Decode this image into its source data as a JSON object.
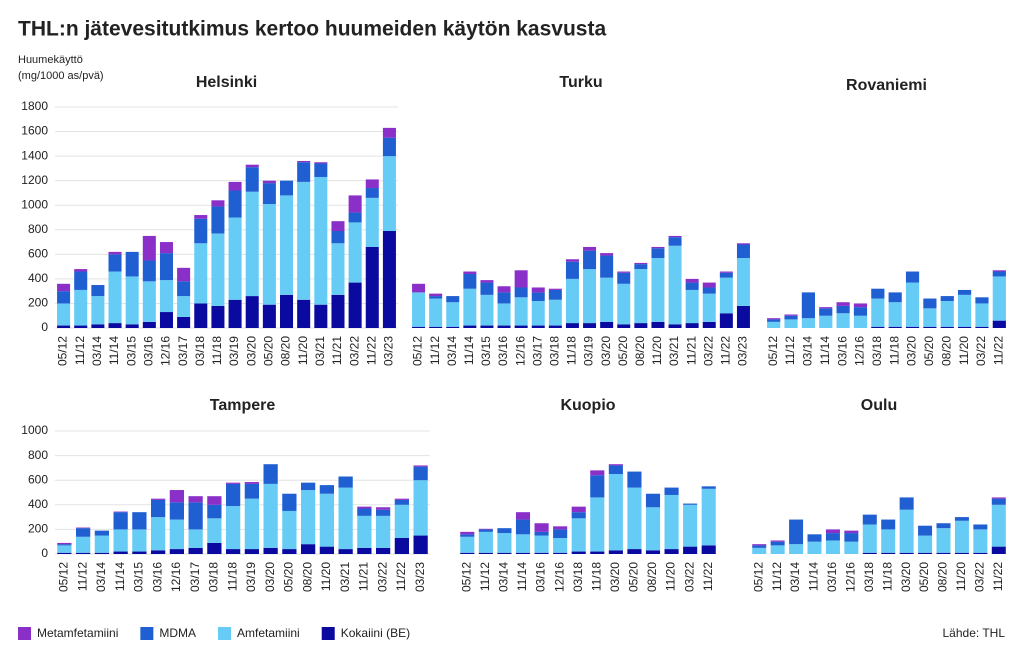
{
  "title": "THL:n jätevesitutkimus kertoo huumeiden käytön kasvusta",
  "ylabel": [
    "Huumekäyttö",
    "(mg/1000 as/pvä)"
  ],
  "source": "Lähde: THL",
  "chart_data": [
    {
      "type": "bar",
      "stacked": true,
      "title": "Helsinki",
      "categories": [
        "05/12",
        "11/12",
        "03/14",
        "11/14",
        "03/15",
        "03/16",
        "12/16",
        "03/17",
        "03/18",
        "11/18",
        "03/19",
        "03/20",
        "05/20",
        "08/20",
        "11/20",
        "03/21",
        "11/21",
        "03/22",
        "11/22",
        "03/23"
      ],
      "series": [
        {
          "name": "Metamfetamiini",
          "color": "#8b2fc9",
          "values": [
            60,
            20,
            0,
            20,
            0,
            200,
            90,
            110,
            30,
            50,
            70,
            20,
            20,
            0,
            10,
            10,
            80,
            140,
            70,
            80
          ]
        },
        {
          "name": "MDMA",
          "color": "#1f5fd1",
          "values": [
            100,
            150,
            90,
            140,
            200,
            170,
            220,
            120,
            200,
            220,
            220,
            200,
            170,
            120,
            160,
            110,
            100,
            80,
            80,
            150
          ]
        },
        {
          "name": "Amfetamiini",
          "color": "#66ccf5",
          "values": [
            180,
            290,
            230,
            420,
            390,
            330,
            260,
            170,
            490,
            590,
            670,
            850,
            820,
            810,
            960,
            1040,
            420,
            490,
            400,
            610
          ]
        },
        {
          "name": "Kokaiini (BE)",
          "color": "#0a0aa0",
          "values": [
            20,
            20,
            30,
            40,
            30,
            50,
            130,
            90,
            200,
            180,
            230,
            260,
            190,
            270,
            230,
            190,
            270,
            370,
            660,
            790
          ]
        }
      ],
      "ylim": [
        0,
        1800
      ],
      "yticks": [
        0,
        200,
        400,
        600,
        800,
        1000,
        1200,
        1400,
        1600,
        1800
      ],
      "grid": true
    },
    {
      "type": "bar",
      "stacked": true,
      "title": "Turku",
      "categories": [
        "05/12",
        "11/12",
        "03/14",
        "11/14",
        "03/15",
        "03/16",
        "12/16",
        "03/17",
        "03/18",
        "11/18",
        "03/19",
        "03/20",
        "05/20",
        "08/20",
        "11/20",
        "03/21",
        "11/21",
        "03/22",
        "11/22",
        "03/23"
      ],
      "series": [
        {
          "values": [
            70,
            20,
            0,
            20,
            20,
            50,
            140,
            40,
            10,
            20,
            30,
            20,
            10,
            10,
            10,
            10,
            30,
            40,
            10,
            10
          ]
        },
        {
          "values": [
            0,
            20,
            50,
            120,
            100,
            90,
            80,
            70,
            80,
            140,
            150,
            180,
            90,
            40,
            80,
            70,
            60,
            50,
            40,
            110
          ]
        },
        {
          "values": [
            280,
            230,
            200,
            300,
            250,
            180,
            230,
            200,
            210,
            360,
            440,
            360,
            330,
            440,
            520,
            640,
            270,
            230,
            290,
            390
          ]
        },
        {
          "values": [
            10,
            10,
            10,
            20,
            20,
            20,
            20,
            20,
            20,
            40,
            40,
            50,
            30,
            40,
            50,
            30,
            40,
            50,
            120,
            180
          ]
        }
      ],
      "ylim": [
        0,
        1800
      ]
    },
    {
      "type": "bar",
      "stacked": true,
      "title": "Rovaniemi",
      "categories": [
        "05/12",
        "11/12",
        "03/14",
        "11/14",
        "03/16",
        "12/16",
        "03/18",
        "11/18",
        "03/20",
        "05/20",
        "08/20",
        "11/20",
        "03/22",
        "11/22"
      ],
      "series": [
        {
          "values": [
            10,
            10,
            0,
            10,
            30,
            30,
            0,
            0,
            0,
            0,
            0,
            0,
            0,
            10
          ]
        },
        {
          "values": [
            20,
            30,
            210,
            60,
            60,
            70,
            80,
            80,
            90,
            80,
            40,
            40,
            50,
            40
          ]
        },
        {
          "values": [
            50,
            70,
            80,
            100,
            120,
            100,
            230,
            200,
            360,
            150,
            210,
            260,
            190,
            360
          ]
        },
        {
          "values": [
            0,
            0,
            0,
            0,
            0,
            0,
            10,
            10,
            10,
            10,
            10,
            10,
            10,
            60
          ]
        }
      ],
      "ylim": [
        0,
        1800
      ]
    },
    {
      "type": "bar",
      "stacked": true,
      "title": "Tampere",
      "categories": [
        "05/12",
        "11/12",
        "03/14",
        "11/14",
        "03/15",
        "03/16",
        "12/16",
        "03/17",
        "03/18",
        "11/18",
        "03/19",
        "03/20",
        "05/20",
        "08/20",
        "11/20",
        "03/21",
        "11/21",
        "03/22",
        "11/22",
        "03/23"
      ],
      "series": [
        {
          "values": [
            10,
            5,
            0,
            5,
            0,
            10,
            100,
            50,
            70,
            10,
            15,
            0,
            0,
            0,
            0,
            0,
            15,
            20,
            10,
            10
          ]
        },
        {
          "values": [
            10,
            70,
            40,
            140,
            140,
            140,
            140,
            220,
            110,
            180,
            120,
            160,
            140,
            60,
            70,
            90,
            60,
            50,
            40,
            110
          ]
        },
        {
          "values": [
            60,
            130,
            140,
            180,
            180,
            270,
            240,
            150,
            200,
            350,
            410,
            520,
            310,
            440,
            430,
            500,
            260,
            260,
            270,
            450
          ]
        },
        {
          "values": [
            10,
            10,
            10,
            20,
            20,
            30,
            40,
            50,
            90,
            40,
            40,
            50,
            40,
            80,
            60,
            40,
            50,
            50,
            130,
            150
          ]
        }
      ],
      "ylim": [
        0,
        1000
      ],
      "yticks": [
        0,
        200,
        400,
        600,
        800,
        1000
      ],
      "grid": true
    },
    {
      "type": "bar",
      "stacked": true,
      "title": "Kuopio",
      "categories": [
        "05/12",
        "11/12",
        "03/14",
        "11/14",
        "03/16",
        "12/16",
        "03/18",
        "11/18",
        "03/20",
        "05/20",
        "08/20",
        "11/20",
        "03/22",
        "11/22"
      ],
      "series": [
        {
          "values": [
            20,
            5,
            0,
            60,
            70,
            25,
            45,
            40,
            10,
            0,
            0,
            0,
            0,
            0
          ]
        },
        {
          "values": [
            20,
            20,
            40,
            120,
            30,
            70,
            50,
            180,
            70,
            130,
            110,
            60,
            10,
            20
          ]
        },
        {
          "values": [
            130,
            170,
            160,
            150,
            140,
            120,
            270,
            440,
            620,
            500,
            350,
            440,
            340,
            460
          ]
        },
        {
          "values": [
            10,
            10,
            10,
            10,
            10,
            10,
            20,
            20,
            30,
            40,
            30,
            40,
            60,
            70
          ]
        }
      ],
      "ylim": [
        0,
        1000
      ]
    },
    {
      "type": "bar",
      "stacked": true,
      "title": "Oulu",
      "categories": [
        "05/12",
        "11/12",
        "03/14",
        "11/14",
        "03/16",
        "12/16",
        "03/18",
        "11/18",
        "03/20",
        "05/20",
        "08/20",
        "11/20",
        "03/22",
        "11/22"
      ],
      "series": [
        {
          "values": [
            10,
            10,
            0,
            0,
            30,
            20,
            0,
            0,
            0,
            0,
            0,
            0,
            0,
            10
          ]
        },
        {
          "values": [
            20,
            30,
            200,
            60,
            60,
            70,
            80,
            80,
            100,
            80,
            40,
            30,
            40,
            50
          ]
        },
        {
          "values": [
            50,
            70,
            80,
            100,
            110,
            100,
            230,
            190,
            350,
            140,
            200,
            260,
            190,
            340
          ]
        },
        {
          "values": [
            0,
            0,
            0,
            0,
            0,
            0,
            10,
            10,
            10,
            10,
            10,
            10,
            10,
            60
          ]
        }
      ],
      "ylim": [
        0,
        1000
      ]
    }
  ]
}
